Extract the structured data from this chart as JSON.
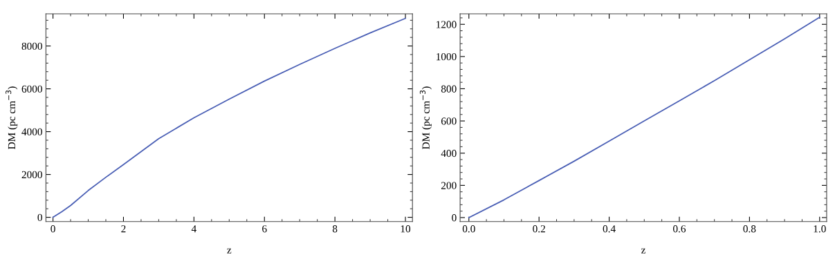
{
  "chart_data": [
    {
      "type": "line",
      "xlabel": "z",
      "ylabel": "DM (pc cm$^{−3}$)",
      "xlim": [
        -0.2,
        10.2
      ],
      "ylim": [
        -200,
        9500
      ],
      "xticks": [
        0,
        2,
        4,
        6,
        8,
        10
      ],
      "yticks": [
        0,
        2000,
        4000,
        6000,
        8000
      ],
      "grid": false,
      "series": [
        {
          "color": "#4a5fb5",
          "x": [
            0,
            0.25,
            0.5,
            1,
            1.5,
            2,
            3,
            4,
            5,
            6,
            7,
            8,
            9,
            10
          ],
          "values": [
            0,
            260,
            550,
            1250,
            1870,
            2460,
            3670,
            4650,
            5520,
            6360,
            7140,
            7890,
            8610,
            9290
          ]
        }
      ]
    },
    {
      "type": "line",
      "xlabel": "z",
      "ylabel": "DM (pc cm$^{−3}$)",
      "xlim": [
        -0.025,
        1.02
      ],
      "ylim": [
        -25,
        1265
      ],
      "xticks": [
        {
          "value": 0,
          "label": "0.0"
        },
        {
          "value": 0.2,
          "label": "0.2"
        },
        {
          "value": 0.4,
          "label": "0.4"
        },
        {
          "value": 0.6,
          "label": "0.6"
        },
        {
          "value": 0.8,
          "label": "0.8"
        },
        {
          "value": 1,
          "label": "1.0"
        }
      ],
      "yticks": [
        0,
        200,
        400,
        600,
        800,
        1000,
        1200
      ],
      "grid": false,
      "series": [
        {
          "color": "#4a5fb5",
          "x": [
            0,
            0.1,
            0.2,
            0.3,
            0.4,
            0.5,
            0.6,
            0.7,
            0.8,
            0.9,
            1.0
          ],
          "values": [
            0,
            110,
            230,
            350,
            475,
            600,
            725,
            850,
            980,
            1110,
            1244
          ]
        }
      ]
    }
  ]
}
